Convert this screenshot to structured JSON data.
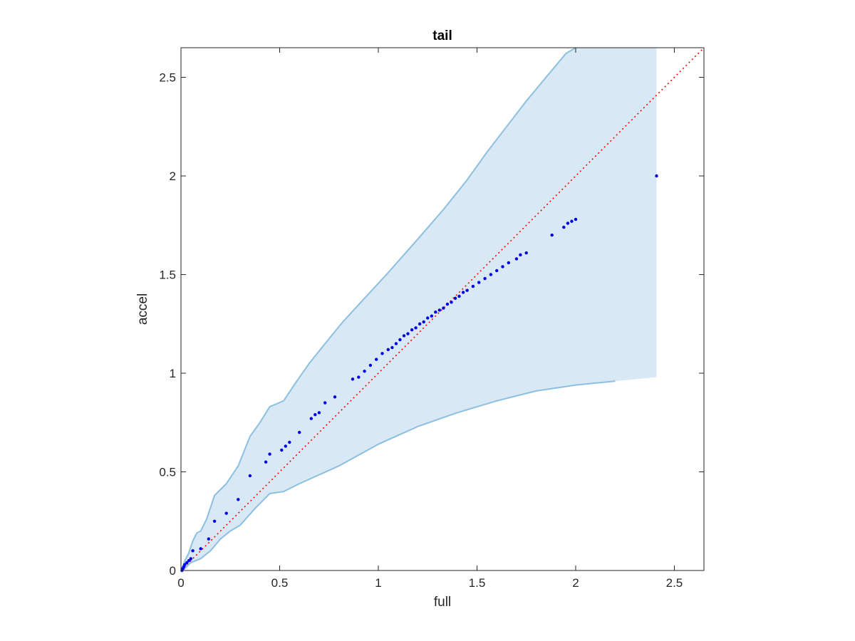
{
  "chart_data": {
    "type": "scatter",
    "title": "tail",
    "xlabel": "full",
    "ylabel": "accel",
    "xlim": [
      0,
      2.65
    ],
    "ylim": [
      0,
      2.65
    ],
    "xticks": [
      "0",
      "0.5",
      "1",
      "1.5",
      "2",
      "2.5"
    ],
    "yticks": [
      "0",
      "0.5",
      "1",
      "1.5",
      "2",
      "2.5"
    ],
    "grid": false,
    "legend": "none",
    "colors": {
      "points": "#0000e6",
      "band_fill": "#d8e8f4",
      "band_edge": "#8cbfe0",
      "reference_line": "#ff0000",
      "axes": "#262626"
    },
    "reference_line": {
      "style": "dotted",
      "from": [
        0,
        0
      ],
      "to": [
        2.65,
        2.65
      ]
    },
    "band": {
      "upper": [
        [
          0,
          0
        ],
        [
          0.02,
          0.05
        ],
        [
          0.04,
          0.09
        ],
        [
          0.06,
          0.15
        ],
        [
          0.08,
          0.19
        ],
        [
          0.1,
          0.2
        ],
        [
          0.13,
          0.26
        ],
        [
          0.17,
          0.38
        ],
        [
          0.23,
          0.44
        ],
        [
          0.29,
          0.53
        ],
        [
          0.35,
          0.68
        ],
        [
          0.4,
          0.75
        ],
        [
          0.45,
          0.83
        ],
        [
          0.52,
          0.86
        ],
        [
          0.58,
          0.95
        ],
        [
          0.65,
          1.05
        ],
        [
          0.73,
          1.15
        ],
        [
          0.82,
          1.26
        ],
        [
          0.93,
          1.38
        ],
        [
          1.05,
          1.51
        ],
        [
          1.2,
          1.68
        ],
        [
          1.33,
          1.83
        ],
        [
          1.45,
          1.98
        ],
        [
          1.55,
          2.12
        ],
        [
          1.65,
          2.25
        ],
        [
          1.75,
          2.38
        ],
        [
          1.85,
          2.5
        ],
        [
          1.95,
          2.62
        ],
        [
          2.0,
          2.65
        ],
        [
          2.41,
          2.65
        ]
      ],
      "lower": [
        [
          2.41,
          0.98
        ],
        [
          2.2,
          0.96
        ],
        [
          2.0,
          0.94
        ],
        [
          1.8,
          0.91
        ],
        [
          1.6,
          0.86
        ],
        [
          1.4,
          0.8
        ],
        [
          1.2,
          0.73
        ],
        [
          1.0,
          0.64
        ],
        [
          0.8,
          0.53
        ],
        [
          0.6,
          0.44
        ],
        [
          0.52,
          0.4
        ],
        [
          0.45,
          0.39
        ],
        [
          0.38,
          0.32
        ],
        [
          0.3,
          0.23
        ],
        [
          0.25,
          0.2
        ],
        [
          0.2,
          0.16
        ],
        [
          0.15,
          0.1
        ],
        [
          0.1,
          0.06
        ],
        [
          0.05,
          0.04
        ],
        [
          0.02,
          0.01
        ],
        [
          0,
          0
        ]
      ]
    },
    "series": [
      {
        "x": [
          0.005,
          0.01,
          0.015,
          0.02,
          0.03,
          0.04,
          0.05,
          0.06,
          0.1,
          0.14,
          0.17,
          0.23,
          0.29,
          0.35,
          0.43,
          0.45,
          0.51,
          0.53,
          0.55,
          0.6,
          0.66,
          0.68,
          0.7,
          0.73,
          0.78,
          0.87,
          0.9,
          0.93,
          0.96,
          0.99,
          1.02,
          1.05,
          1.07,
          1.09,
          1.11,
          1.13,
          1.15,
          1.17,
          1.19,
          1.21,
          1.23,
          1.25,
          1.27,
          1.29,
          1.31,
          1.33,
          1.35,
          1.37,
          1.39,
          1.41,
          1.43,
          1.45,
          1.48,
          1.51,
          1.54,
          1.57,
          1.6,
          1.63,
          1.66,
          1.7,
          1.72,
          1.75,
          1.88,
          1.94,
          1.96,
          1.98,
          2.0,
          2.41
        ],
        "y": [
          0.0,
          0.01,
          0.02,
          0.03,
          0.04,
          0.05,
          0.06,
          0.1,
          0.11,
          0.16,
          0.25,
          0.29,
          0.36,
          0.48,
          0.55,
          0.59,
          0.61,
          0.63,
          0.65,
          0.7,
          0.77,
          0.79,
          0.8,
          0.85,
          0.88,
          0.97,
          0.98,
          1.01,
          1.04,
          1.07,
          1.1,
          1.12,
          1.13,
          1.15,
          1.17,
          1.19,
          1.2,
          1.22,
          1.23,
          1.25,
          1.26,
          1.28,
          1.29,
          1.31,
          1.32,
          1.33,
          1.35,
          1.36,
          1.38,
          1.39,
          1.41,
          1.42,
          1.44,
          1.46,
          1.48,
          1.5,
          1.52,
          1.54,
          1.56,
          1.58,
          1.6,
          1.61,
          1.7,
          1.74,
          1.76,
          1.77,
          1.78,
          2.0
        ]
      }
    ]
  }
}
